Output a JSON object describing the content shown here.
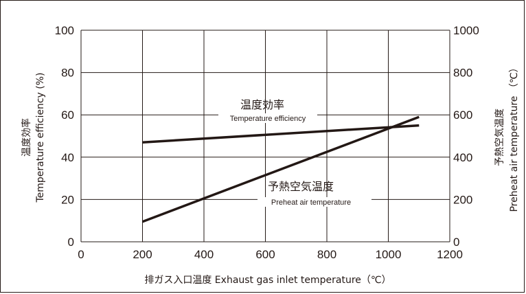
{
  "chart_data": {
    "type": "line",
    "xlabel": "排ガス入口温度 Exhaust gas inlet temperature（℃）",
    "ylabel_left": [
      "温度効率",
      "Temperature efficiency (%)"
    ],
    "ylabel_right": [
      "予熱空気温度",
      "Preheat air temperature （℃）"
    ],
    "xlim": [
      0,
      1200
    ],
    "ylim_left": [
      0,
      100
    ],
    "ylim_right": [
      0,
      1000
    ],
    "x_ticks": [
      "0",
      "200",
      "400",
      "600",
      "800",
      "1000",
      "1200"
    ],
    "y_ticks_left": [
      "0",
      "20",
      "40",
      "60",
      "80",
      "100"
    ],
    "y_ticks_right": [
      "0",
      "200",
      "400",
      "600",
      "800",
      "1000"
    ],
    "grid": true,
    "colors": {
      "line": "#231815",
      "grid": "#231815"
    },
    "series": [
      {
        "name": "温度効率",
        "name_en": "Temperature efficiency",
        "axis": "left",
        "x": [
          200,
          1100
        ],
        "y": [
          47,
          55
        ]
      },
      {
        "name": "予熱空気温度",
        "name_en": "Preheat air temperature",
        "axis": "right",
        "x": [
          200,
          1100
        ],
        "y": [
          95,
          590
        ]
      }
    ]
  }
}
